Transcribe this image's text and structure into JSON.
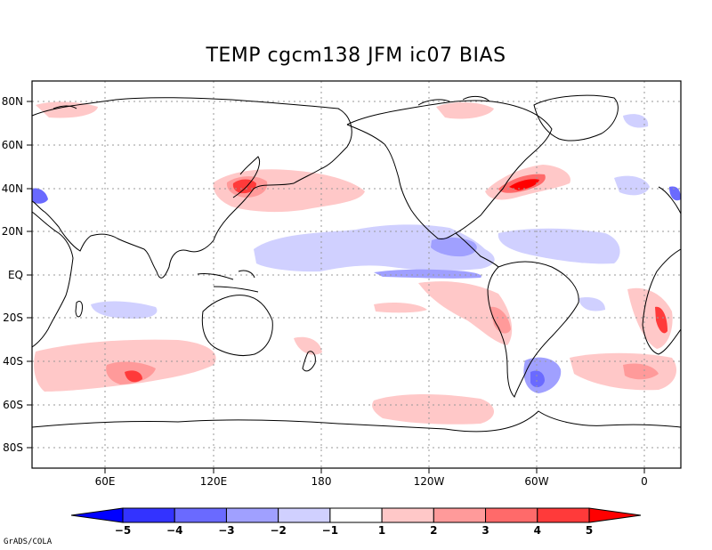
{
  "title": "TEMP cgcm138 JFM ic07 BIAS",
  "credit": "GrADS/COLA",
  "lat_labels": [
    "80N",
    "60N",
    "40N",
    "20N",
    "EQ",
    "20S",
    "40S",
    "60S",
    "80S"
  ],
  "lon_labels": [
    "60E",
    "120E",
    "180",
    "120W",
    "60W",
    "0"
  ],
  "colorbar": {
    "labels": [
      "-5",
      "-4",
      "-3",
      "-2",
      "-1",
      "1",
      "2",
      "3",
      "4",
      "5"
    ],
    "colors": [
      "#0000ff",
      "#3333ff",
      "#6a6aff",
      "#a0a0ff",
      "#d0d0ff",
      "#ffffff",
      "#ffc8c8",
      "#ff9a9a",
      "#ff6a6a",
      "#ff3a3a",
      "#ff0000"
    ]
  },
  "map": {
    "lat_range": [
      -90,
      90
    ],
    "lon_range": [
      0,
      360
    ],
    "grid_style": "dotted",
    "projection": "lat-lon"
  }
}
